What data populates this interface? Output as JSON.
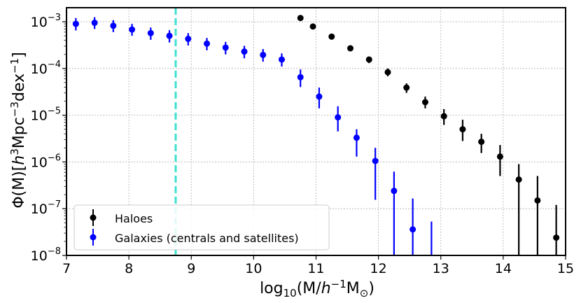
{
  "chart_data": {
    "type": "scatter",
    "title": "",
    "xlabel": "log10(M/h^-1 M☉)",
    "ylabel": "Φ(M)[h^3Mpc^-3dex^-1]",
    "xlim": [
      7,
      15
    ],
    "ylim_log10": [
      -8,
      -2.7
    ],
    "x_ticks": [
      7,
      8,
      9,
      10,
      11,
      12,
      13,
      14,
      15
    ],
    "y_ticks_log10": [
      -8,
      -7,
      -6,
      -5,
      -4,
      -3
    ],
    "y_scale": "log",
    "grid": true,
    "legend_position": "lower-left",
    "vline": {
      "x": 8.75,
      "color": "#40E0D0",
      "style": "dashed"
    },
    "series": [
      {
        "name": "Haloes",
        "color": "#000000",
        "x": [
          10.75,
          10.95,
          11.25,
          11.55,
          11.85,
          12.15,
          12.45,
          12.75,
          13.05,
          13.35,
          13.65,
          13.95,
          14.25,
          14.55,
          14.85
        ],
        "y": [
          0.0012,
          0.00079,
          0.00048,
          0.00027,
          0.000155,
          8.3e-05,
          3.9e-05,
          1.9e-05,
          9.5e-06,
          5e-06,
          2.7e-06,
          1.3e-06,
          4.2e-07,
          1.5e-07,
          2.4e-08
        ],
        "ylo": [
          0.0011,
          0.00073,
          0.00044,
          0.00024,
          0.00013,
          6.8e-05,
          3e-05,
          1.4e-05,
          6.2e-06,
          2.8e-06,
          1.55e-06,
          5e-07,
          1e-08,
          1e-08,
          1e-08
        ],
        "yhi": [
          0.0013,
          0.00086,
          0.00053,
          0.0003,
          0.00018,
          0.0001,
          4.8e-05,
          2.5e-05,
          1.35e-05,
          8e-06,
          4e-06,
          2.3e-06,
          9e-07,
          5e-07,
          1.2e-07
        ]
      },
      {
        "name": "Galaxies (centrals and satellites)",
        "color": "#0000FF",
        "x": [
          7.15,
          7.45,
          7.75,
          8.05,
          8.35,
          8.65,
          8.95,
          9.25,
          9.55,
          9.85,
          10.15,
          10.45,
          10.75,
          11.05,
          11.35,
          11.65,
          11.95,
          12.25,
          12.55,
          12.85
        ],
        "y": [
          0.0009,
          0.00095,
          0.00082,
          0.00068,
          0.00057,
          0.0005,
          0.00043,
          0.00034,
          0.00028,
          0.00023,
          0.000195,
          0.000155,
          6.5e-05,
          2.5e-05,
          9e-06,
          3.3e-06,
          1.05e-06,
          2.4e-07,
          3.6e-08,
          null
        ],
        "ylo": [
          0.00065,
          0.0007,
          0.0006,
          0.0005,
          0.00041,
          0.00036,
          0.00031,
          0.000245,
          0.0002,
          0.000165,
          0.00014,
          0.00011,
          4e-05,
          1.4e-05,
          4.5e-06,
          1.3e-06,
          1.55e-07,
          1e-08,
          1e-08,
          1e-08
        ],
        "yhi": [
          0.0012,
          0.00125,
          0.00108,
          0.0009,
          0.00075,
          0.00066,
          0.00057,
          0.00045,
          0.00037,
          0.000305,
          0.00026,
          0.00021,
          9.5e-05,
          3.9e-05,
          1.55e-05,
          5e-06,
          2e-06,
          6.2e-07,
          1.65e-07,
          5.3e-08
        ]
      }
    ]
  }
}
